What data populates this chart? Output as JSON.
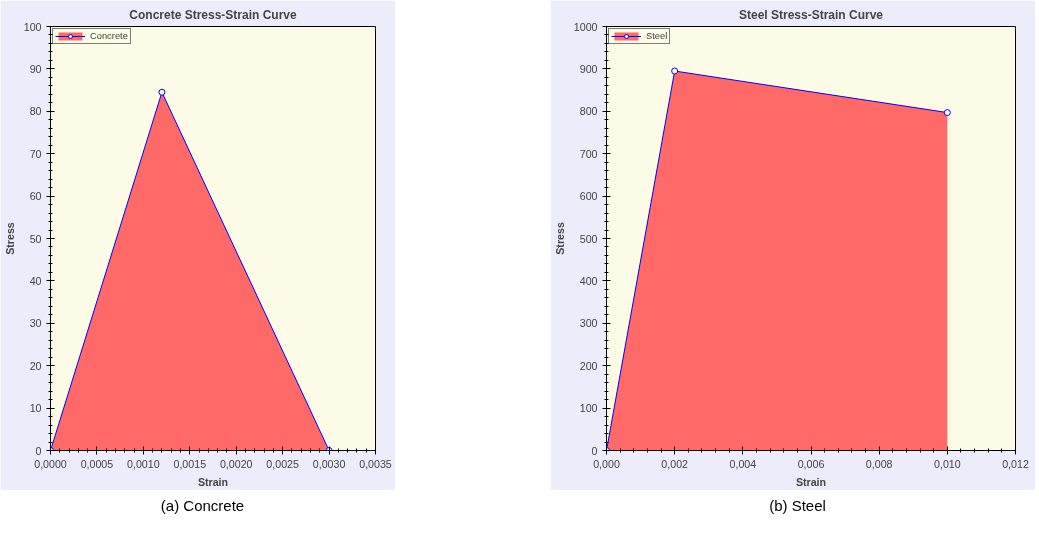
{
  "chart_data": [
    {
      "type": "area",
      "title": "Concrete Stress-Strain Curve",
      "xlabel": "Strain",
      "ylabel": "Stress",
      "marker": "circle",
      "legend": "top left",
      "grid": false,
      "x": [
        0,
        0.0012,
        0.003
      ],
      "series": [
        {
          "name": "Concrete",
          "color": "#ff5a5a",
          "values": [
            0,
            84.5,
            0
          ]
        }
      ],
      "xlim": [
        0,
        0.0035
      ],
      "ylim": [
        0,
        100
      ],
      "xticks": [
        {
          "value": 0,
          "label": "0,0000"
        },
        {
          "value": 0.0005,
          "label": "0,0005"
        },
        {
          "value": 0.001,
          "label": "0,0010"
        },
        {
          "value": 0.0015,
          "label": "0,0015"
        },
        {
          "value": 0.002,
          "label": "0,0020"
        },
        {
          "value": 0.0025,
          "label": "0,0025"
        },
        {
          "value": 0.003,
          "label": "0,0030"
        },
        {
          "value": 0.0035,
          "label": "0,0035"
        }
      ],
      "yticks": [
        0,
        10,
        20,
        30,
        40,
        50,
        60,
        70,
        80,
        90,
        100
      ],
      "annotations": [
        "(a)  Concrete"
      ]
    },
    {
      "type": "area",
      "title": "Steel Stress-Strain Curve",
      "xlabel": "Strain",
      "ylabel": "Stress",
      "marker": "circle",
      "legend": "top left",
      "grid": false,
      "x": [
        0,
        0.002,
        0.01
      ],
      "series": [
        {
          "name": "Steel",
          "color": "#ff5a5a",
          "values": [
            0,
            895,
            797
          ]
        }
      ],
      "xlim": [
        0,
        0.012
      ],
      "ylim": [
        0,
        1000
      ],
      "xticks": [
        {
          "value": 0,
          "label": "0,000"
        },
        {
          "value": 0.002,
          "label": "0,002"
        },
        {
          "value": 0.004,
          "label": "0,004"
        },
        {
          "value": 0.006,
          "label": "0,006"
        },
        {
          "value": 0.008,
          "label": "0,008"
        },
        {
          "value": 0.01,
          "label": "0,010"
        },
        {
          "value": 0.012,
          "label": "0,012"
        }
      ],
      "yticks": [
        0,
        100,
        200,
        300,
        400,
        500,
        600,
        700,
        800,
        900,
        1000
      ],
      "annotations": [
        "(b)  Steel"
      ]
    }
  ]
}
